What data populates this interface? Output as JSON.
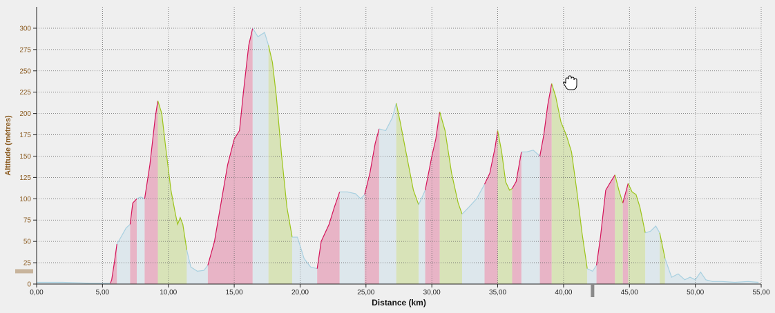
{
  "chart_data": {
    "type": "area",
    "title": "",
    "xlabel": "Distance (km)",
    "ylabel": "Altitude (mètres)",
    "xlim": [
      0,
      55
    ],
    "ylim": [
      0,
      325
    ],
    "xticks": [
      0,
      5,
      10,
      15,
      20,
      25,
      30,
      35,
      40,
      45,
      50,
      55
    ],
    "xtick_labels": [
      "0,00",
      "5,00",
      "10,00",
      "15,00",
      "20,00",
      "25,00",
      "30,00",
      "35,00",
      "40,00",
      "45,00",
      "50,00",
      "55,00"
    ],
    "yticks": [
      0,
      25,
      50,
      75,
      100,
      125,
      150,
      175,
      200,
      225,
      250,
      275,
      300
    ],
    "ytick_labels": [
      "0",
      "25",
      "50",
      "75",
      "100",
      "125",
      "150",
      "175",
      "200",
      "225",
      "250",
      "275",
      "300"
    ],
    "grid": true,
    "colors": {
      "climb_line": "#d4145a",
      "climb_fill": "#e8b4c6",
      "descent_line": "#9cc41a",
      "descent_fill": "#d8e3b8",
      "flat_line": "#a8d0e0",
      "flat_fill": "#dde7ec",
      "background": "#efefef",
      "axis_title": "#8a5a1f"
    },
    "series": [
      {
        "points": [
          [
            0.0,
            2
          ],
          [
            2.0,
            2
          ],
          [
            4.0,
            1
          ],
          [
            5.6,
            1
          ],
          [
            5.7,
            5
          ],
          [
            5.9,
            25
          ],
          [
            6.1,
            47
          ],
          [
            6.4,
            55
          ],
          [
            6.8,
            66
          ],
          [
            7.1,
            70
          ],
          [
            7.3,
            95
          ],
          [
            7.6,
            100
          ],
          [
            7.9,
            102
          ],
          [
            8.2,
            100
          ],
          [
            8.6,
            140
          ],
          [
            9.0,
            195
          ],
          [
            9.2,
            215
          ],
          [
            9.5,
            200
          ],
          [
            9.8,
            160
          ],
          [
            10.2,
            110
          ],
          [
            10.5,
            85
          ],
          [
            10.7,
            70
          ],
          [
            10.9,
            78
          ],
          [
            11.1,
            70
          ],
          [
            11.4,
            40
          ],
          [
            11.7,
            20
          ],
          [
            12.2,
            15
          ],
          [
            12.7,
            16
          ],
          [
            13.0,
            22
          ],
          [
            13.5,
            50
          ],
          [
            14.0,
            95
          ],
          [
            14.5,
            140
          ],
          [
            15.0,
            170
          ],
          [
            15.4,
            180
          ],
          [
            15.7,
            225
          ],
          [
            16.1,
            280
          ],
          [
            16.4,
            300
          ],
          [
            16.8,
            290
          ],
          [
            17.3,
            295
          ],
          [
            17.6,
            280
          ],
          [
            17.9,
            260
          ],
          [
            18.2,
            220
          ],
          [
            18.6,
            150
          ],
          [
            19.0,
            90
          ],
          [
            19.4,
            55
          ],
          [
            19.8,
            55
          ],
          [
            20.3,
            30
          ],
          [
            20.8,
            20
          ],
          [
            21.3,
            18
          ],
          [
            21.6,
            50
          ],
          [
            22.2,
            70
          ],
          [
            22.6,
            90
          ],
          [
            23.0,
            108
          ],
          [
            23.6,
            108
          ],
          [
            24.2,
            106
          ],
          [
            24.6,
            100
          ],
          [
            24.9,
            105
          ],
          [
            25.3,
            130
          ],
          [
            25.7,
            165
          ],
          [
            26.0,
            182
          ],
          [
            26.5,
            180
          ],
          [
            27.0,
            195
          ],
          [
            27.3,
            212
          ],
          [
            27.6,
            190
          ],
          [
            28.1,
            150
          ],
          [
            28.6,
            110
          ],
          [
            29.0,
            93
          ],
          [
            29.5,
            110
          ],
          [
            30.0,
            150
          ],
          [
            30.3,
            170
          ],
          [
            30.6,
            202
          ],
          [
            31.0,
            180
          ],
          [
            31.5,
            130
          ],
          [
            32.0,
            95
          ],
          [
            32.3,
            82
          ],
          [
            32.8,
            90
          ],
          [
            33.4,
            100
          ],
          [
            34.0,
            117
          ],
          [
            34.4,
            130
          ],
          [
            34.8,
            160
          ],
          [
            35.0,
            180
          ],
          [
            35.3,
            155
          ],
          [
            35.6,
            120
          ],
          [
            35.9,
            110
          ],
          [
            36.1,
            112
          ],
          [
            36.4,
            120
          ],
          [
            36.8,
            155
          ],
          [
            37.2,
            155
          ],
          [
            37.7,
            157
          ],
          [
            38.2,
            150
          ],
          [
            38.5,
            175
          ],
          [
            38.8,
            210
          ],
          [
            39.1,
            235
          ],
          [
            39.4,
            220
          ],
          [
            39.8,
            190
          ],
          [
            40.2,
            175
          ],
          [
            40.6,
            155
          ],
          [
            41.0,
            110
          ],
          [
            41.4,
            60
          ],
          [
            41.8,
            18
          ],
          [
            42.2,
            15
          ],
          [
            42.5,
            22
          ],
          [
            42.8,
            55
          ],
          [
            43.2,
            110
          ],
          [
            43.5,
            118
          ],
          [
            43.9,
            128
          ],
          [
            44.2,
            110
          ],
          [
            44.5,
            95
          ],
          [
            44.9,
            118
          ],
          [
            45.2,
            108
          ],
          [
            45.5,
            105
          ],
          [
            45.8,
            90
          ],
          [
            46.2,
            60
          ],
          [
            46.6,
            62
          ],
          [
            47.0,
            68
          ],
          [
            47.3,
            60
          ],
          [
            47.7,
            30
          ],
          [
            48.2,
            8
          ],
          [
            48.7,
            12
          ],
          [
            49.2,
            5
          ],
          [
            49.6,
            8
          ],
          [
            50.0,
            5
          ],
          [
            50.4,
            14
          ],
          [
            50.8,
            5
          ],
          [
            51.3,
            3
          ],
          [
            52.0,
            3
          ],
          [
            53.0,
            2
          ],
          [
            54.0,
            3
          ],
          [
            54.8,
            2
          ]
        ],
        "segments": [
          {
            "from": 0.0,
            "to": 5.6,
            "kind": "flat"
          },
          {
            "from": 5.6,
            "to": 6.1,
            "kind": "climb"
          },
          {
            "from": 6.1,
            "to": 7.1,
            "kind": "flat"
          },
          {
            "from": 7.1,
            "to": 7.6,
            "kind": "climb"
          },
          {
            "from": 7.6,
            "to": 8.2,
            "kind": "flat"
          },
          {
            "from": 8.2,
            "to": 9.2,
            "kind": "climb"
          },
          {
            "from": 9.2,
            "to": 11.4,
            "kind": "descent"
          },
          {
            "from": 11.4,
            "to": 13.0,
            "kind": "flat"
          },
          {
            "from": 13.0,
            "to": 16.4,
            "kind": "climb"
          },
          {
            "from": 16.4,
            "to": 17.6,
            "kind": "flat"
          },
          {
            "from": 17.6,
            "to": 19.4,
            "kind": "descent"
          },
          {
            "from": 19.4,
            "to": 21.3,
            "kind": "flat"
          },
          {
            "from": 21.3,
            "to": 23.0,
            "kind": "climb"
          },
          {
            "from": 23.0,
            "to": 24.9,
            "kind": "flat"
          },
          {
            "from": 24.9,
            "to": 26.0,
            "kind": "climb"
          },
          {
            "from": 26.0,
            "to": 27.3,
            "kind": "flat"
          },
          {
            "from": 27.3,
            "to": 29.0,
            "kind": "descent"
          },
          {
            "from": 29.0,
            "to": 29.5,
            "kind": "flat"
          },
          {
            "from": 29.5,
            "to": 30.6,
            "kind": "climb"
          },
          {
            "from": 30.6,
            "to": 32.3,
            "kind": "descent"
          },
          {
            "from": 32.3,
            "to": 34.0,
            "kind": "flat"
          },
          {
            "from": 34.0,
            "to": 35.0,
            "kind": "climb"
          },
          {
            "from": 35.0,
            "to": 36.1,
            "kind": "descent"
          },
          {
            "from": 36.1,
            "to": 36.8,
            "kind": "climb"
          },
          {
            "from": 36.8,
            "to": 38.2,
            "kind": "flat"
          },
          {
            "from": 38.2,
            "to": 39.1,
            "kind": "climb"
          },
          {
            "from": 39.1,
            "to": 41.8,
            "kind": "descent"
          },
          {
            "from": 41.8,
            "to": 42.5,
            "kind": "flat"
          },
          {
            "from": 42.5,
            "to": 43.9,
            "kind": "climb"
          },
          {
            "from": 43.9,
            "to": 44.5,
            "kind": "descent"
          },
          {
            "from": 44.5,
            "to": 44.9,
            "kind": "climb"
          },
          {
            "from": 44.9,
            "to": 46.2,
            "kind": "descent"
          },
          {
            "from": 46.2,
            "to": 47.3,
            "kind": "flat"
          },
          {
            "from": 47.3,
            "to": 47.7,
            "kind": "descent"
          },
          {
            "from": 47.7,
            "to": 54.8,
            "kind": "flat"
          }
        ]
      }
    ],
    "y_scroll_marker": 15,
    "x_scroll_marker": 42.2
  }
}
